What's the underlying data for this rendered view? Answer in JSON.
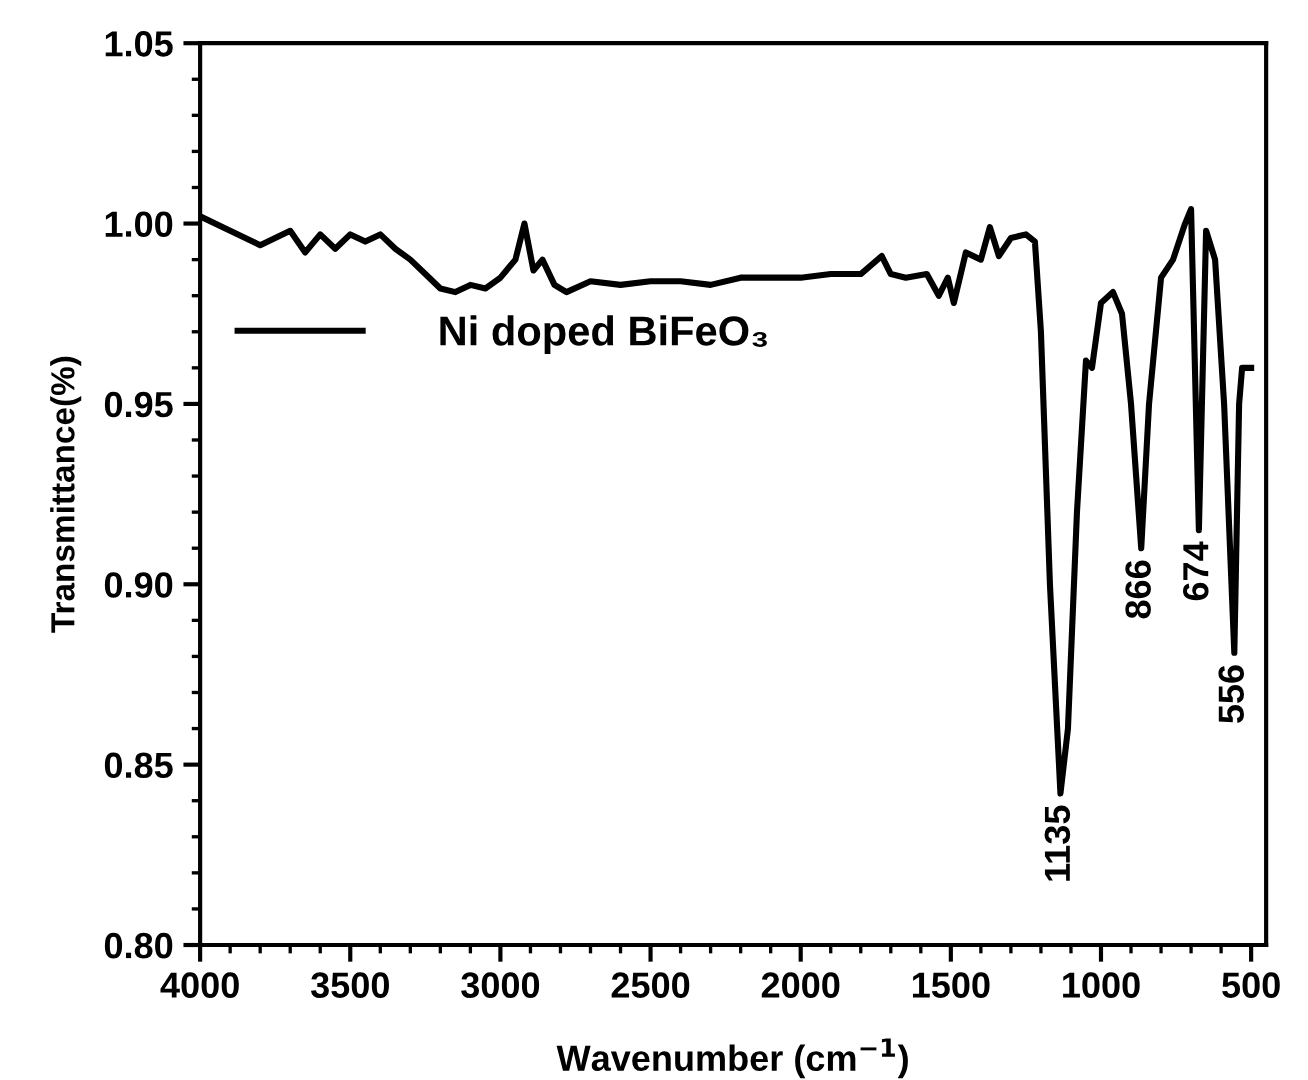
{
  "chart_data": {
    "type": "line",
    "xlabel": "Wavenumber (cm$^{−1}$)",
    "ylabel": "Transmittance(%)",
    "xlim": [
      4000,
      450
    ],
    "xticks": [
      4000,
      3500,
      3000,
      2500,
      2000,
      1500,
      1000,
      500
    ],
    "ylim": [
      0.8,
      1.05
    ],
    "yticks": [
      {
        "value": 0.8,
        "label": "0.80"
      },
      {
        "value": 0.85,
        "label": "0.85"
      },
      {
        "value": 0.9,
        "label": "0.90"
      },
      {
        "value": 0.95,
        "label": "0.95"
      },
      {
        "value": 1.0,
        "label": "1.00"
      },
      {
        "value": 1.05,
        "label": "1.05"
      }
    ],
    "grid": false,
    "legend": "top left",
    "marker": "none",
    "line_style": "solid",
    "x": [
      4000,
      3900,
      3800,
      3700,
      3650,
      3600,
      3550,
      3500,
      3450,
      3400,
      3350,
      3300,
      3250,
      3200,
      3150,
      3100,
      3050,
      3000,
      2950,
      2920,
      2890,
      2860,
      2820,
      2780,
      2700,
      2600,
      2500,
      2400,
      2300,
      2200,
      2100,
      2000,
      1900,
      1800,
      1730,
      1700,
      1650,
      1580,
      1540,
      1510,
      1490,
      1450,
      1400,
      1370,
      1340,
      1300,
      1250,
      1220,
      1200,
      1170,
      1135,
      1110,
      1080,
      1050,
      1030,
      1000,
      960,
      930,
      900,
      866,
      840,
      800,
      760,
      720,
      700,
      674,
      650,
      620,
      590,
      556,
      540,
      530,
      500
    ],
    "series": [
      {
        "name": "Ni doped BiFeO₃",
        "color": "#000000",
        "values": [
          1.002,
          0.998,
          0.994,
          0.998,
          0.992,
          0.997,
          0.993,
          0.997,
          0.995,
          0.997,
          0.993,
          0.99,
          0.986,
          0.982,
          0.981,
          0.983,
          0.982,
          0.985,
          0.99,
          1.0,
          0.987,
          0.99,
          0.983,
          0.981,
          0.984,
          0.983,
          0.984,
          0.984,
          0.983,
          0.985,
          0.985,
          0.985,
          0.986,
          0.986,
          0.991,
          0.986,
          0.985,
          0.986,
          0.98,
          0.985,
          0.978,
          0.992,
          0.99,
          0.999,
          0.991,
          0.996,
          0.997,
          0.995,
          0.97,
          0.9,
          0.842,
          0.86,
          0.92,
          0.962,
          0.96,
          0.978,
          0.981,
          0.975,
          0.95,
          0.91,
          0.95,
          0.985,
          0.99,
          1.0,
          1.004,
          0.915,
          0.998,
          0.99,
          0.95,
          0.881,
          0.95,
          0.96,
          0.96
        ]
      }
    ],
    "annotations": [
      {
        "text": "1135",
        "x": 1135,
        "y": 0.842
      },
      {
        "text": "866",
        "x": 866,
        "y": 0.91
      },
      {
        "text": "674",
        "x": 674,
        "y": 0.915
      },
      {
        "text": "556",
        "x": 556,
        "y": 0.881
      }
    ]
  }
}
